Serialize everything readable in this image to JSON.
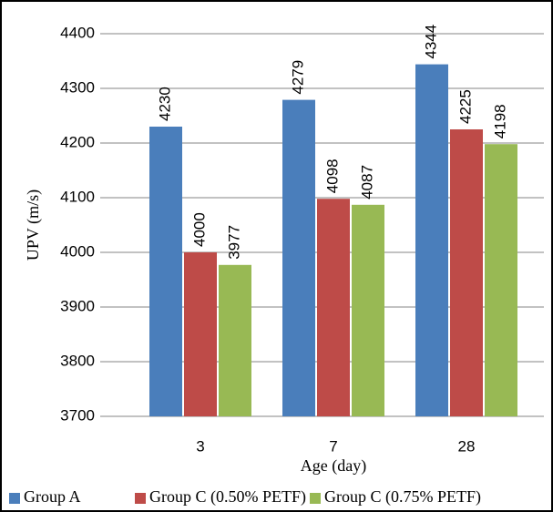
{
  "chart_data": {
    "type": "bar",
    "x_label": "Age (day)",
    "y_label": "UPV (m/s)",
    "categories": [
      "3",
      "7",
      "28"
    ],
    "series": [
      {
        "name": "Group A",
        "color": "#4a7ebb",
        "values": [
          4230,
          4279,
          4344
        ]
      },
      {
        "name": "Group C (0.50% PETF)",
        "color": "#be4b48",
        "values": [
          4000,
          4098,
          4225
        ]
      },
      {
        "name": "Group C (0.75% PETF)",
        "color": "#98b954",
        "values": [
          3977,
          4087,
          4198
        ]
      }
    ],
    "ylim": [
      3700,
      4400
    ],
    "yticks": [
      3700,
      3800,
      3900,
      4000,
      4100,
      4200,
      4300,
      4400
    ],
    "grid": true,
    "legend": "bottom"
  }
}
